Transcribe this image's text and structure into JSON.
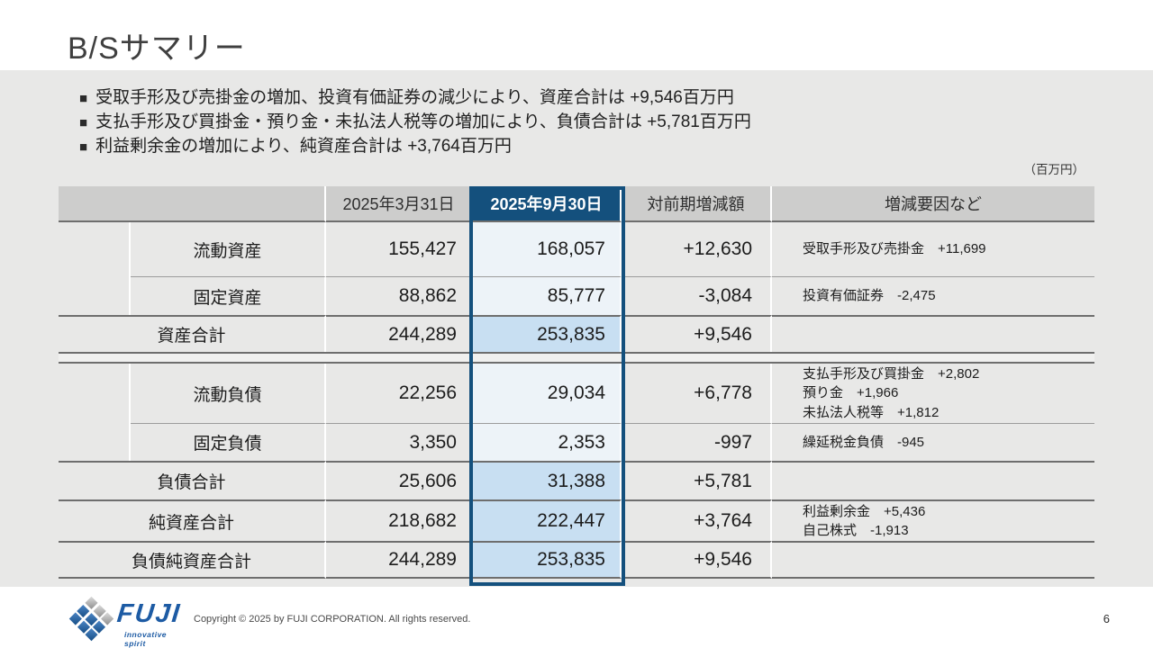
{
  "page": {
    "title": "B/Sサマリー",
    "unit_note": "（百万円）",
    "page_number": "6"
  },
  "bullet_marker": "■",
  "bullets": [
    "受取手形及び売掛金の増加、投資有価証券の減少により、資産合計は  +9,546百万円",
    "支払手形及び買掛金・預り金・未払法人税等の増加により、負債合計は +5,781百万円",
    "利益剰余金の増加により、純資産合計は +3,764百万円"
  ],
  "table": {
    "col_headers": {
      "prev_period": "2025年3月31日",
      "curr_period": "2025年9月30日",
      "change": "対前期増減額",
      "factors": "増減要因など"
    },
    "rows": [
      {
        "label": "流動資産",
        "prev": "155,427",
        "curr": "168,057",
        "change": "+12,630",
        "notes": [
          "受取手形及び売掛金　+11,699"
        ]
      },
      {
        "label": "固定資産",
        "prev": "88,862",
        "curr": "85,777",
        "change": "-3,084",
        "notes": [
          "投資有価証券　-2,475"
        ]
      },
      {
        "label": "資産合計",
        "prev": "244,289",
        "curr": "253,835",
        "change": "+9,546",
        "notes": []
      },
      {
        "label": "流動負債",
        "prev": "22,256",
        "curr": "29,034",
        "change": "+6,778",
        "notes": [
          "支払手形及び買掛金　+2,802",
          "預り金　+1,966",
          "未払法人税等　+1,812"
        ]
      },
      {
        "label": "固定負債",
        "prev": "3,350",
        "curr": "2,353",
        "change": "-997",
        "notes": [
          "繰延税金負債　-945"
        ]
      },
      {
        "label": "負債合計",
        "prev": "25,606",
        "curr": "31,388",
        "change": "+5,781",
        "notes": []
      },
      {
        "label": "純資産合計",
        "prev": "218,682",
        "curr": "222,447",
        "change": "+3,764",
        "notes": [
          "利益剰余金　+5,436",
          "自己株式　-1,913"
        ]
      },
      {
        "label": "負債純資産合計",
        "prev": "244,289",
        "curr": "253,835",
        "change": "+9,546",
        "notes": []
      }
    ]
  },
  "footer": {
    "logo_text": "FUJI",
    "logo_tagline": "innovative spirit",
    "copyright": "Copyright © 2025 by FUJI CORPORATION. All rights reserved."
  },
  "colors": {
    "accent_navy": "#14507d",
    "highlight_strong": "#c8dff2",
    "highlight_soft": "#edf3f8",
    "band_gray": "#e8e8e7",
    "header_gray": "#cdcdcc"
  }
}
